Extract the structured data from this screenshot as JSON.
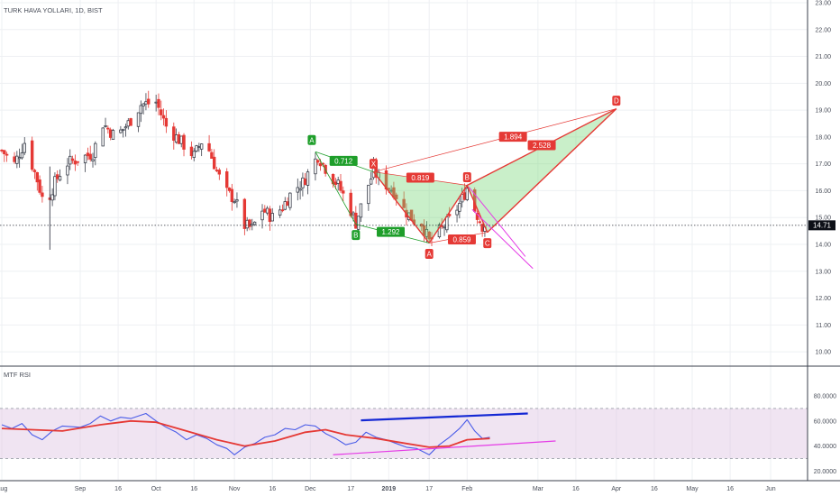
{
  "header": {
    "symbol_label": "TURK HAVA YOLLARI, 1D, BIST"
  },
  "rsi_panel": {
    "label": "MTF RSI"
  },
  "last_price_label": "14.71",
  "colors": {
    "up": "#3a3f4b",
    "down": "#e53935",
    "pattern_red": "#e53935",
    "pattern_green": "#1e9e2a",
    "pattern_fill": "rgba(112, 214, 112, 0.38)",
    "rsi_line": "#4a5ce8",
    "rsi_avg": "#e53935",
    "rsi_band": "rgba(222, 196, 226, 0.45)",
    "trend_blue": "#1428d4",
    "trend_pink": "#e53be6",
    "grid": "#eef0f3",
    "axis_text": "#4a4f5a"
  },
  "chart_data": [
    {
      "type": "candlestick",
      "symbol": "TURK HAVA YOLLARI",
      "interval": "1D",
      "exchange": "BIST",
      "y_axis": {
        "ticks": [
          "10.00",
          "11.00",
          "12.00",
          "13.00",
          "14.00",
          "15.00",
          "16.00",
          "17.00",
          "18.00",
          "19.00",
          "20.00",
          "21.00",
          "22.00",
          "23.00"
        ],
        "range": [
          9.5,
          23.1
        ]
      },
      "x_axis": {
        "ticks": [
          "Aug",
          "Sep",
          "16",
          "Oct",
          "16",
          "Nov",
          "16",
          "Dec",
          "17",
          "2019",
          "17",
          "Feb",
          "Mar",
          "16",
          "Apr",
          "16",
          "May",
          "16",
          "Jun"
        ],
        "tick_dates": [
          "2018-08-01",
          "2018-09-01",
          "2018-09-16",
          "2018-10-01",
          "2018-10-16",
          "2018-11-01",
          "2018-11-16",
          "2018-12-01",
          "2018-12-17",
          "2019-01-01",
          "2019-01-17",
          "2019-02-01",
          "2019-03-01",
          "2019-03-16",
          "2019-04-01",
          "2019-04-16",
          "2019-05-01",
          "2019-05-16",
          "2019-06-01"
        ]
      },
      "last_price": 14.71,
      "close_path": [
        [
          "2018-08-01",
          17.5
        ],
        [
          "2018-08-06",
          17.0
        ],
        [
          "2018-08-10",
          17.8
        ],
        [
          "2018-08-15",
          16.4
        ],
        [
          "2018-08-18",
          15.4
        ],
        [
          "2018-08-22",
          16.3
        ],
        [
          "2018-08-26",
          17.0
        ],
        [
          "2018-09-01",
          17.2
        ],
        [
          "2018-09-06",
          17.4
        ],
        [
          "2018-09-10",
          18.5
        ],
        [
          "2018-09-15",
          18.0
        ],
        [
          "2018-09-20",
          18.5
        ],
        [
          "2018-09-25",
          19.2
        ],
        [
          "2018-10-01",
          19.3
        ],
        [
          "2018-10-05",
          18.4
        ],
        [
          "2018-10-10",
          17.9
        ],
        [
          "2018-10-16",
          17.3
        ],
        [
          "2018-10-20",
          18.0
        ],
        [
          "2018-10-24",
          17.0
        ],
        [
          "2018-10-28",
          16.0
        ],
        [
          "2018-11-01",
          15.7
        ],
        [
          "2018-11-05",
          14.7
        ],
        [
          "2018-11-08",
          14.6
        ],
        [
          "2018-11-12",
          15.3
        ],
        [
          "2018-11-16",
          15.0
        ],
        [
          "2018-11-20",
          15.4
        ],
        [
          "2018-11-24",
          16.0
        ],
        [
          "2018-11-28",
          16.3
        ],
        [
          "2018-12-01",
          16.8
        ],
        [
          "2018-12-04",
          17.3
        ],
        [
          "2018-12-08",
          16.7
        ],
        [
          "2018-12-12",
          16.2
        ],
        [
          "2018-12-16",
          15.5
        ],
        [
          "2018-12-19",
          14.8
        ],
        [
          "2018-12-23",
          16.0
        ],
        [
          "2018-12-26",
          16.7
        ],
        [
          "2018-12-30",
          16.3
        ],
        [
          "2019-01-03",
          16.0
        ],
        [
          "2019-01-07",
          15.3
        ],
        [
          "2019-01-11",
          14.9
        ],
        [
          "2019-01-14",
          14.8
        ],
        [
          "2019-01-17",
          14.1
        ],
        [
          "2019-01-21",
          14.5
        ],
        [
          "2019-01-25",
          14.9
        ],
        [
          "2019-01-29",
          15.5
        ],
        [
          "2019-02-01",
          16.1
        ],
        [
          "2019-02-04",
          15.3
        ],
        [
          "2019-02-07",
          14.7
        ],
        [
          "2019-02-10",
          14.8
        ]
      ],
      "harmonic_pattern": {
        "points": [
          {
            "label": "X",
            "date": "2018-12-26",
            "price": 16.7
          },
          {
            "label": "A",
            "date": "2019-01-17",
            "price": 14.05
          },
          {
            "label": "B",
            "date": "2019-02-01",
            "price": 16.2
          },
          {
            "label": "C",
            "date": "2019-02-09",
            "price": 14.45
          },
          {
            "label": "D",
            "date": "2019-04-01",
            "price": 19.05
          }
        ],
        "ratios": [
          "0.819",
          "0.859",
          "1.894",
          "2.528"
        ]
      },
      "abcd_pattern": {
        "points": [
          {
            "label": "A",
            "date": "2018-12-03",
            "price": 17.45
          },
          {
            "label": "B",
            "date": "2018-12-19",
            "price": 14.75
          }
        ],
        "ratios": [
          "0.712",
          "1.292"
        ]
      }
    },
    {
      "type": "line",
      "title": "MTF RSI",
      "y_axis": {
        "ticks": [
          "20.0000",
          "40.0000",
          "60.0000",
          "80.0000"
        ],
        "range": [
          13,
          88
        ]
      },
      "band": [
        30,
        70
      ],
      "series": [
        {
          "values": [
            [
              "2018-08-01",
              57
            ],
            [
              "2018-08-05",
              54
            ],
            [
              "2018-08-09",
              58
            ],
            [
              "2018-08-13",
              49
            ],
            [
              "2018-08-17",
              45
            ],
            [
              "2018-08-21",
              52
            ],
            [
              "2018-08-25",
              56
            ],
            [
              "2018-09-01",
              55
            ],
            [
              "2018-09-05",
              58
            ],
            [
              "2018-09-09",
              64
            ],
            [
              "2018-09-13",
              60
            ],
            [
              "2018-09-17",
              63
            ],
            [
              "2018-09-21",
              62
            ],
            [
              "2018-09-27",
              66
            ],
            [
              "2018-10-01",
              60
            ],
            [
              "2018-10-05",
              55
            ],
            [
              "2018-10-09",
              51
            ],
            [
              "2018-10-13",
              45
            ],
            [
              "2018-10-17",
              49
            ],
            [
              "2018-10-21",
              46
            ],
            [
              "2018-10-25",
              41
            ],
            [
              "2018-10-29",
              38
            ],
            [
              "2018-11-01",
              33
            ],
            [
              "2018-11-05",
              39
            ],
            [
              "2018-11-09",
              42
            ],
            [
              "2018-11-13",
              47
            ],
            [
              "2018-11-17",
              49
            ],
            [
              "2018-11-21",
              54
            ],
            [
              "2018-11-25",
              53
            ],
            [
              "2018-11-29",
              57
            ],
            [
              "2018-12-03",
              56
            ],
            [
              "2018-12-07",
              50
            ],
            [
              "2018-12-11",
              46
            ],
            [
              "2018-12-15",
              41
            ],
            [
              "2018-12-19",
              43
            ],
            [
              "2018-12-23",
              51
            ],
            [
              "2018-12-27",
              47
            ],
            [
              "2018-12-31",
              45
            ],
            [
              "2019-01-04",
              42
            ],
            [
              "2019-01-08",
              39
            ],
            [
              "2019-01-12",
              38
            ],
            [
              "2019-01-17",
              33
            ],
            [
              "2019-01-21",
              41
            ],
            [
              "2019-01-25",
              47
            ],
            [
              "2019-01-29",
              54
            ],
            [
              "2019-02-01",
              61
            ],
            [
              "2019-02-04",
              52
            ],
            [
              "2019-02-07",
              46
            ],
            [
              "2019-02-10",
              47
            ]
          ]
        },
        {
          "values": [
            [
              "2018-08-01",
              54
            ],
            [
              "2018-08-13",
              53
            ],
            [
              "2018-08-25",
              52
            ],
            [
              "2018-09-09",
              57
            ],
            [
              "2018-09-21",
              60
            ],
            [
              "2018-10-01",
              59
            ],
            [
              "2018-10-13",
              52
            ],
            [
              "2018-10-25",
              45
            ],
            [
              "2018-11-05",
              40
            ],
            [
              "2018-11-17",
              44
            ],
            [
              "2018-11-29",
              51
            ],
            [
              "2018-12-07",
              53
            ],
            [
              "2018-12-15",
              49
            ],
            [
              "2018-12-27",
              46
            ],
            [
              "2019-01-08",
              42
            ],
            [
              "2019-01-17",
              39
            ],
            [
              "2019-01-25",
              40
            ],
            [
              "2019-02-01",
              45
            ],
            [
              "2019-02-10",
              46
            ]
          ]
        }
      ],
      "trendlines": [
        {
          "color": "blue",
          "from": [
            "2018-12-21",
            60.5
          ],
          "to": [
            "2019-02-25",
            66
          ]
        },
        {
          "color": "pink",
          "from": [
            "2018-12-10",
            33
          ],
          "to": [
            "2019-03-08",
            44
          ]
        }
      ]
    }
  ]
}
